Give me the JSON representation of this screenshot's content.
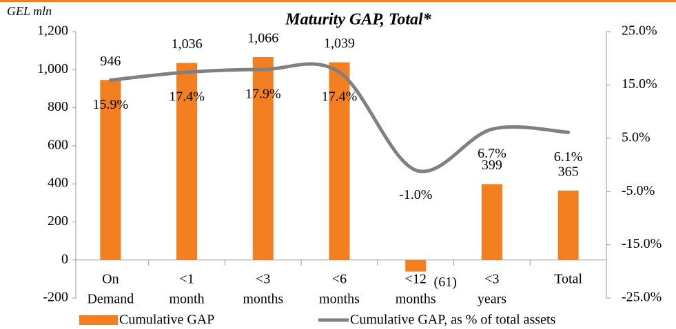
{
  "chart_data": {
    "type": "combo",
    "title": "Maturity GAP, Total*",
    "y_axis_label": "GEL mln",
    "categories": [
      "On Demand",
      "<1 month",
      "<3 months",
      "<6 months",
      "<12 months",
      "<3 years",
      "Total"
    ],
    "series": [
      {
        "name": "Cumulative GAP",
        "type": "bar",
        "color": "#f47f20",
        "values": [
          946,
          1036,
          1066,
          1039,
          -61,
          399,
          365
        ],
        "value_labels": [
          "946",
          "1,036",
          "1,066",
          "1,039",
          "(61)",
          "399",
          "365"
        ]
      },
      {
        "name": "Cumulative GAP, as % of total assets",
        "type": "line",
        "axis": "y2",
        "color": "#808080",
        "values": [
          15.9,
          17.4,
          17.9,
          17.4,
          -1.0,
          6.7,
          6.1
        ],
        "value_labels": [
          "15.9%",
          "17.4%",
          "17.9%",
          "17.4%",
          "-1.0%",
          "6.7%",
          "6.1%"
        ]
      }
    ],
    "ylim": [
      -200,
      1200
    ],
    "yticks": [
      {
        "value": -200,
        "label": "-200"
      },
      0,
      200,
      400,
      600,
      800,
      {
        "value": 1000,
        "label": "1,000"
      },
      {
        "value": 1200,
        "label": "1,200"
      }
    ],
    "y2lim": [
      -25,
      25
    ],
    "y2ticks": [
      {
        "value": -25,
        "label": "-25.0%"
      },
      {
        "value": -15,
        "label": "-15.0%"
      },
      {
        "value": -5,
        "label": "-5.0%"
      },
      {
        "value": 5,
        "label": "5.0%"
      },
      {
        "value": 15,
        "label": "15.0%"
      },
      {
        "value": 25,
        "label": "25.0%"
      }
    ],
    "grid": false,
    "legend": "bottom"
  }
}
